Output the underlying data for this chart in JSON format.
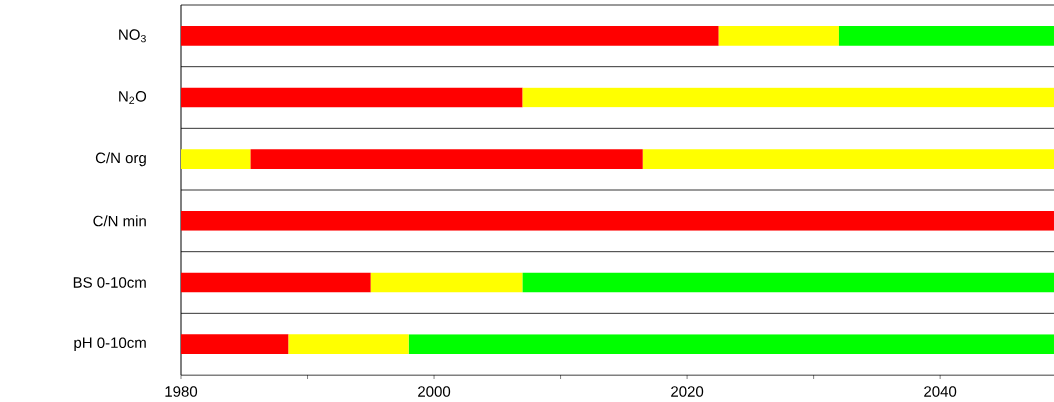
{
  "chart_data": {
    "type": "bar",
    "orientation": "horizontal",
    "categories": [
      "NO$_{3}$",
      "N$_{2}$O",
      "C/N org",
      "C/N min",
      "BS 0-10cm",
      "pH 0-10cm"
    ],
    "series": [
      {
        "base": [
          1980,
          1980,
          1980,
          1980,
          1980,
          1980
        ],
        "values": [
          42.5,
          27,
          5.5,
          69,
          15,
          8.5
        ],
        "colors": [
          "#ff0000",
          "#ff0000",
          "#ffff00",
          "#ff0000",
          "#ff0000",
          "#ff0000"
        ]
      },
      {
        "base": [
          2022.5,
          2007,
          1985.5,
          null,
          1995,
          1988.5
        ],
        "values": [
          9.5,
          42,
          31,
          null,
          12,
          9.5
        ],
        "colors": [
          "#ffff00",
          "#ffff00",
          "#ff0000",
          null,
          "#ffff00",
          "#ffff00"
        ]
      },
      {
        "base": [
          2032,
          null,
          2016.5,
          null,
          2007,
          1998
        ],
        "values": [
          17,
          null,
          32.5,
          null,
          42,
          51
        ],
        "colors": [
          "#00ff00",
          null,
          "#ffff00",
          null,
          "#00ff00",
          "#00ff00"
        ]
      }
    ],
    "xlim": [
      1980,
      2049
    ],
    "xticks": [
      1980,
      {
        "value": 1990,
        "label": null
      },
      2000,
      {
        "value": 2010,
        "label": null
      },
      2020,
      {
        "value": 2030,
        "label": null
      },
      2040
    ],
    "grid": "y"
  }
}
